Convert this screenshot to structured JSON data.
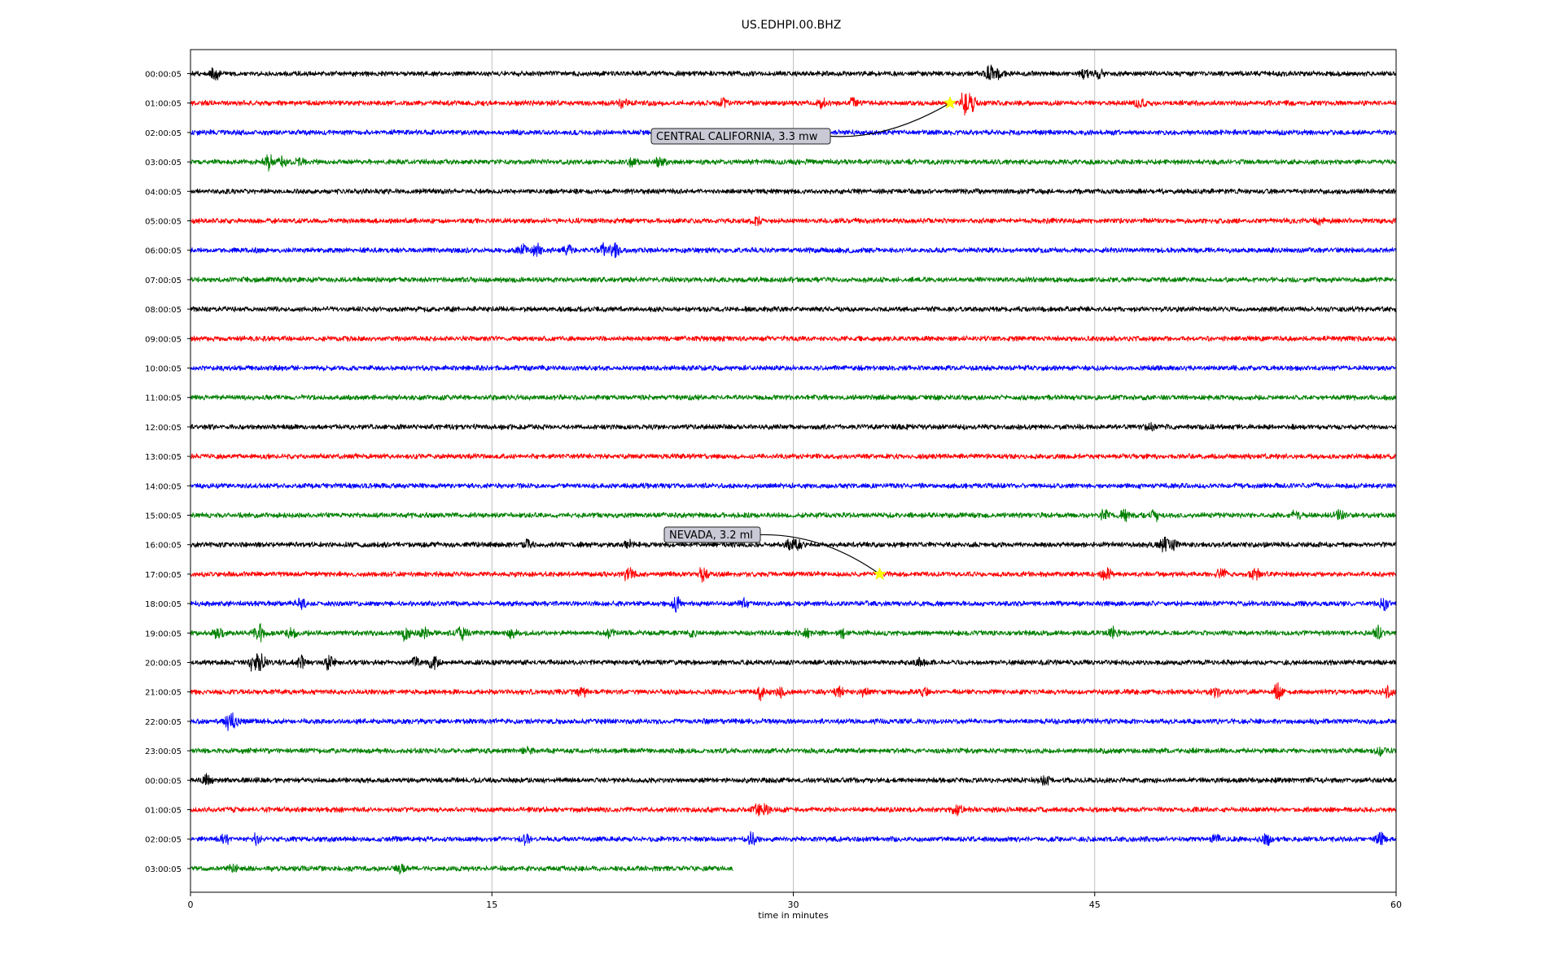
{
  "chart_data": {
    "type": "line",
    "title": "US.EDHPI.00.BHZ",
    "xlabel": "time in minutes",
    "ylabel": "",
    "xlim": [
      0,
      60
    ],
    "x_ticks": [
      0,
      15,
      30,
      45,
      60
    ],
    "x_tick_labels": [
      "0",
      "15",
      "30",
      "45",
      "60"
    ],
    "grid": "vertical",
    "trace_colors": [
      "#000000",
      "#ff0000",
      "#0000ff",
      "#008000"
    ],
    "rows": [
      {
        "label": "00:00:05",
        "end": 60,
        "bursts": [
          [
            1.2,
            2.5
          ],
          [
            39.8,
            3
          ],
          [
            40.3,
            2
          ],
          [
            44.5,
            1.5
          ],
          [
            45.2,
            1.5
          ]
        ]
      },
      {
        "label": "01:00:05",
        "end": 60,
        "bursts": [
          [
            21.5,
            1.6
          ],
          [
            26.5,
            1.6
          ],
          [
            31.5,
            1.6
          ],
          [
            33,
            1.4
          ],
          [
            38.5,
            3.5
          ],
          [
            38.9,
            3
          ],
          [
            47.3,
            1.8
          ]
        ]
      },
      {
        "label": "02:00:05",
        "end": 60,
        "bursts": []
      },
      {
        "label": "03:00:05",
        "end": 60,
        "bursts": [
          [
            3.9,
            2.5
          ],
          [
            4.6,
            1.8
          ],
          [
            5.5,
            1.6
          ],
          [
            22,
            1.6
          ],
          [
            23.4,
            2
          ]
        ]
      },
      {
        "label": "04:00:05",
        "end": 60,
        "bursts": []
      },
      {
        "label": "05:00:05",
        "end": 60,
        "bursts": [
          [
            28.2,
            1.5
          ],
          [
            56.2,
            1.4
          ]
        ]
      },
      {
        "label": "06:00:05",
        "end": 60,
        "bursts": [
          [
            16.5,
            2
          ],
          [
            17.2,
            2.5
          ],
          [
            18.8,
            1.5
          ],
          [
            20.5,
            2
          ],
          [
            21.1,
            2.8
          ]
        ]
      },
      {
        "label": "07:00:05",
        "end": 60,
        "bursts": []
      },
      {
        "label": "08:00:05",
        "end": 60,
        "bursts": []
      },
      {
        "label": "09:00:05",
        "end": 60,
        "bursts": []
      },
      {
        "label": "10:00:05",
        "end": 60,
        "bursts": []
      },
      {
        "label": "11:00:05",
        "end": 60,
        "bursts": []
      },
      {
        "label": "12:00:05",
        "end": 60,
        "bursts": [
          [
            47.8,
            1.2
          ]
        ]
      },
      {
        "label": "13:00:05",
        "end": 60,
        "bursts": []
      },
      {
        "label": "14:00:05",
        "end": 60,
        "bursts": []
      },
      {
        "label": "15:00:05",
        "end": 60,
        "bursts": [
          [
            45.5,
            2
          ],
          [
            46.5,
            1.6
          ],
          [
            48,
            1.6
          ],
          [
            55,
            1.6
          ],
          [
            57.2,
            1.6
          ]
        ]
      },
      {
        "label": "16:00:05",
        "end": 60,
        "bursts": [
          [
            16.8,
            2
          ],
          [
            21.8,
            1.6
          ],
          [
            29.8,
            1.8
          ],
          [
            30.2,
            2.3
          ],
          [
            48.5,
            2.4
          ],
          [
            48.9,
            2
          ]
        ]
      },
      {
        "label": "17:00:05",
        "end": 60,
        "bursts": [
          [
            21.8,
            2.5
          ],
          [
            25.5,
            2.2
          ],
          [
            45.6,
            2.5
          ],
          [
            51.3,
            1.8
          ],
          [
            53,
            2
          ]
        ]
      },
      {
        "label": "18:00:05",
        "end": 60,
        "bursts": [
          [
            5.5,
            1.5
          ],
          [
            24.2,
            2.2
          ],
          [
            27.5,
            2
          ],
          [
            59.4,
            2.2
          ]
        ]
      },
      {
        "label": "19:00:05",
        "end": 60,
        "bursts": [
          [
            1.4,
            2.4
          ],
          [
            3.4,
            3
          ],
          [
            5,
            1.8
          ],
          [
            10.7,
            2.4
          ],
          [
            11.6,
            2
          ],
          [
            13.5,
            2
          ],
          [
            16,
            1.8
          ],
          [
            20.9,
            1.5
          ],
          [
            25,
            1.4
          ],
          [
            30.7,
            1.6
          ],
          [
            32.5,
            1.6
          ],
          [
            45.9,
            2.4
          ],
          [
            59.1,
            2
          ]
        ]
      },
      {
        "label": "20:00:05",
        "end": 60,
        "bursts": [
          [
            3.1,
            2.4
          ],
          [
            3.5,
            2.8
          ],
          [
            5.5,
            2.4
          ],
          [
            6.9,
            2.4
          ],
          [
            11.2,
            2
          ],
          [
            12.1,
            2.4
          ],
          [
            36.3,
            1.2
          ]
        ]
      },
      {
        "label": "21:00:05",
        "end": 60,
        "bursts": [
          [
            19.5,
            1.8
          ],
          [
            28.4,
            2.5
          ],
          [
            29.4,
            1.8
          ],
          [
            32.3,
            1.8
          ],
          [
            33.5,
            1.5
          ],
          [
            36.5,
            1.5
          ],
          [
            51,
            1.8
          ],
          [
            54.1,
            2.8
          ],
          [
            59.6,
            2
          ]
        ]
      },
      {
        "label": "22:00:05",
        "end": 60,
        "bursts": [
          [
            1.9,
            2.8
          ],
          [
            2.2,
            2
          ]
        ]
      },
      {
        "label": "23:00:05",
        "end": 60,
        "bursts": [
          [
            16.7,
            1.3
          ],
          [
            59.2,
            1.3
          ]
        ]
      },
      {
        "label": "00:00:05",
        "end": 60,
        "bursts": [
          [
            0.8,
            2
          ],
          [
            42.5,
            1.8
          ]
        ]
      },
      {
        "label": "01:00:05",
        "end": 60,
        "bursts": [
          [
            28.2,
            2
          ],
          [
            28.6,
            2
          ],
          [
            38.2,
            2
          ]
        ]
      },
      {
        "label": "02:00:05",
        "end": 60,
        "bursts": [
          [
            1.7,
            1.8
          ],
          [
            3.3,
            1.6
          ],
          [
            16.7,
            1.5
          ],
          [
            27.9,
            2
          ],
          [
            51,
            1.6
          ],
          [
            53.5,
            2.5
          ],
          [
            59.2,
            2.4
          ]
        ]
      },
      {
        "label": "03:00:05",
        "end": 27,
        "bursts": [
          [
            2.1,
            1.4
          ],
          [
            10.5,
            2
          ]
        ]
      }
    ],
    "events": [
      {
        "label": "CENTRAL CALIFORNIA, 3.3 mw",
        "row": 1,
        "x": 37.8
      },
      {
        "label": "NEVADA, 3.2 ml",
        "row": 17,
        "x": 34.3
      }
    ]
  }
}
